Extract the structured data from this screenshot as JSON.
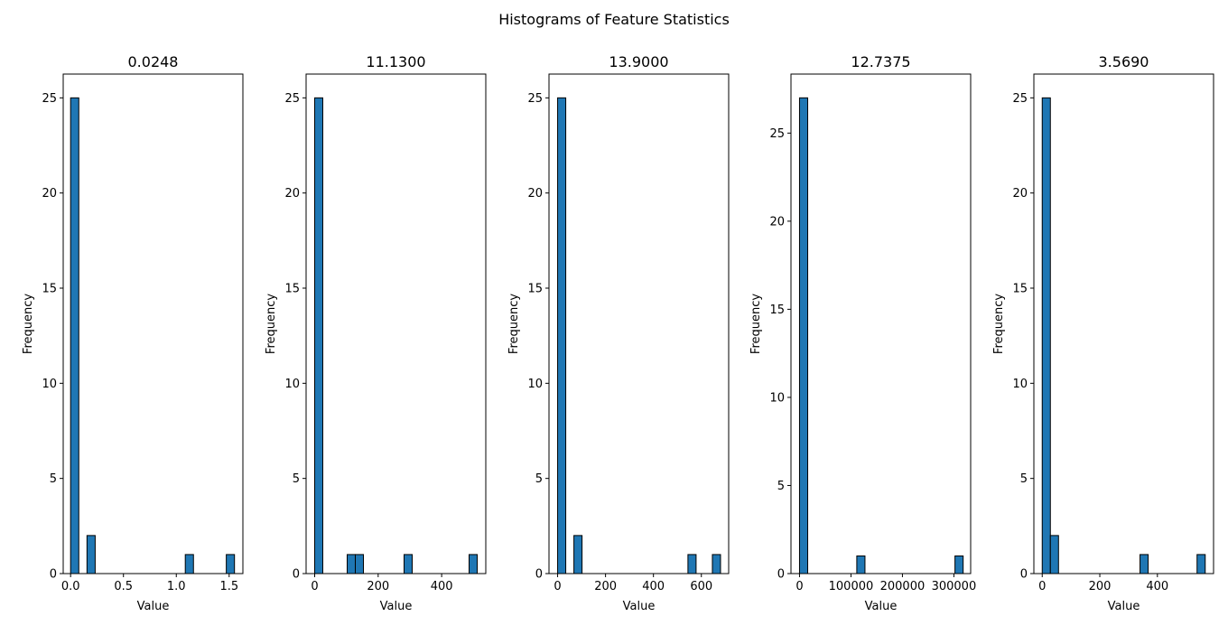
{
  "figure": {
    "suptitle": "Histograms of Feature Statistics"
  },
  "style": {
    "bar_fill": "#1f77b4",
    "bar_edge": "#000000",
    "axes_edge": "#000000",
    "background": "#ffffff"
  },
  "chart_data": [
    {
      "type": "bar",
      "title": "0.0248",
      "xlabel": "Value",
      "ylabel": "Frequency",
      "grid": false,
      "xlim": [
        -0.07,
        1.63
      ],
      "ylim": [
        0,
        26.25
      ],
      "xticks": [
        0.0,
        0.5,
        1.0,
        1.5
      ],
      "xtick_labels": [
        "0.0",
        "0.5",
        "1.0",
        "1.5"
      ],
      "yticks": [
        0,
        5,
        10,
        15,
        20,
        25
      ],
      "ytick_labels": [
        "0",
        "5",
        "10",
        "15",
        "20",
        "25"
      ],
      "bin_width": 0.0775,
      "bins": [
        {
          "x": 0.0,
          "count": 25
        },
        {
          "x": 0.155,
          "count": 2
        },
        {
          "x": 1.085,
          "count": 1
        },
        {
          "x": 1.473,
          "count": 1
        }
      ]
    },
    {
      "type": "bar",
      "title": "11.1300",
      "xlabel": "Value",
      "ylabel": "Frequency",
      "grid": false,
      "xlim": [
        -27,
        539
      ],
      "ylim": [
        0,
        26.25
      ],
      "xticks": [
        0,
        200,
        400
      ],
      "xtick_labels": [
        "0",
        "200",
        "400"
      ],
      "yticks": [
        0,
        5,
        10,
        15,
        20,
        25
      ],
      "ytick_labels": [
        "0",
        "5",
        "10",
        "15",
        "20",
        "25"
      ],
      "bin_width": 25.6,
      "bins": [
        {
          "x": 0,
          "count": 25
        },
        {
          "x": 102.4,
          "count": 1
        },
        {
          "x": 128,
          "count": 1
        },
        {
          "x": 281.6,
          "count": 1
        },
        {
          "x": 486.4,
          "count": 1
        }
      ]
    },
    {
      "type": "bar",
      "title": "13.9000",
      "xlabel": "Value",
      "ylabel": "Frequency",
      "grid": false,
      "xlim": [
        -36,
        714
      ],
      "ylim": [
        0,
        26.25
      ],
      "xticks": [
        0,
        200,
        400,
        600
      ],
      "xtick_labels": [
        "0",
        "200",
        "400",
        "600"
      ],
      "yticks": [
        0,
        5,
        10,
        15,
        20,
        25
      ],
      "ytick_labels": [
        "0",
        "5",
        "10",
        "15",
        "20",
        "25"
      ],
      "bin_width": 34,
      "bins": [
        {
          "x": 0,
          "count": 25
        },
        {
          "x": 68,
          "count": 2
        },
        {
          "x": 544,
          "count": 1
        },
        {
          "x": 646,
          "count": 1
        }
      ]
    },
    {
      "type": "bar",
      "title": "12.7375",
      "xlabel": "Value",
      "ylabel": "Frequency",
      "grid": false,
      "xlim": [
        -16600,
        332600
      ],
      "ylim": [
        0,
        28.35
      ],
      "xticks": [
        0,
        100000,
        200000,
        300000
      ],
      "xtick_labels": [
        "0",
        "100000",
        "200000",
        "300000"
      ],
      "yticks": [
        0,
        5,
        10,
        15,
        20,
        25
      ],
      "ytick_labels": [
        "0",
        "5",
        "10",
        "15",
        "20",
        "25"
      ],
      "bin_width": 15900,
      "bins": [
        {
          "x": 0,
          "count": 27
        },
        {
          "x": 111300,
          "count": 1
        },
        {
          "x": 302100,
          "count": 1
        }
      ]
    },
    {
      "type": "bar",
      "title": "3.5690",
      "xlabel": "Value",
      "ylabel": "Frequency",
      "grid": false,
      "xlim": [
        -29,
        595
      ],
      "ylim": [
        0,
        26.25
      ],
      "xticks": [
        0,
        200,
        400
      ],
      "xtick_labels": [
        "0",
        "200",
        "400"
      ],
      "yticks": [
        0,
        5,
        10,
        15,
        20,
        25
      ],
      "ytick_labels": [
        "0",
        "5",
        "10",
        "15",
        "20",
        "25"
      ],
      "bin_width": 28.3,
      "bins": [
        {
          "x": 0,
          "count": 25
        },
        {
          "x": 28.3,
          "count": 2
        },
        {
          "x": 339.6,
          "count": 1
        },
        {
          "x": 537.7,
          "count": 1
        }
      ]
    }
  ]
}
